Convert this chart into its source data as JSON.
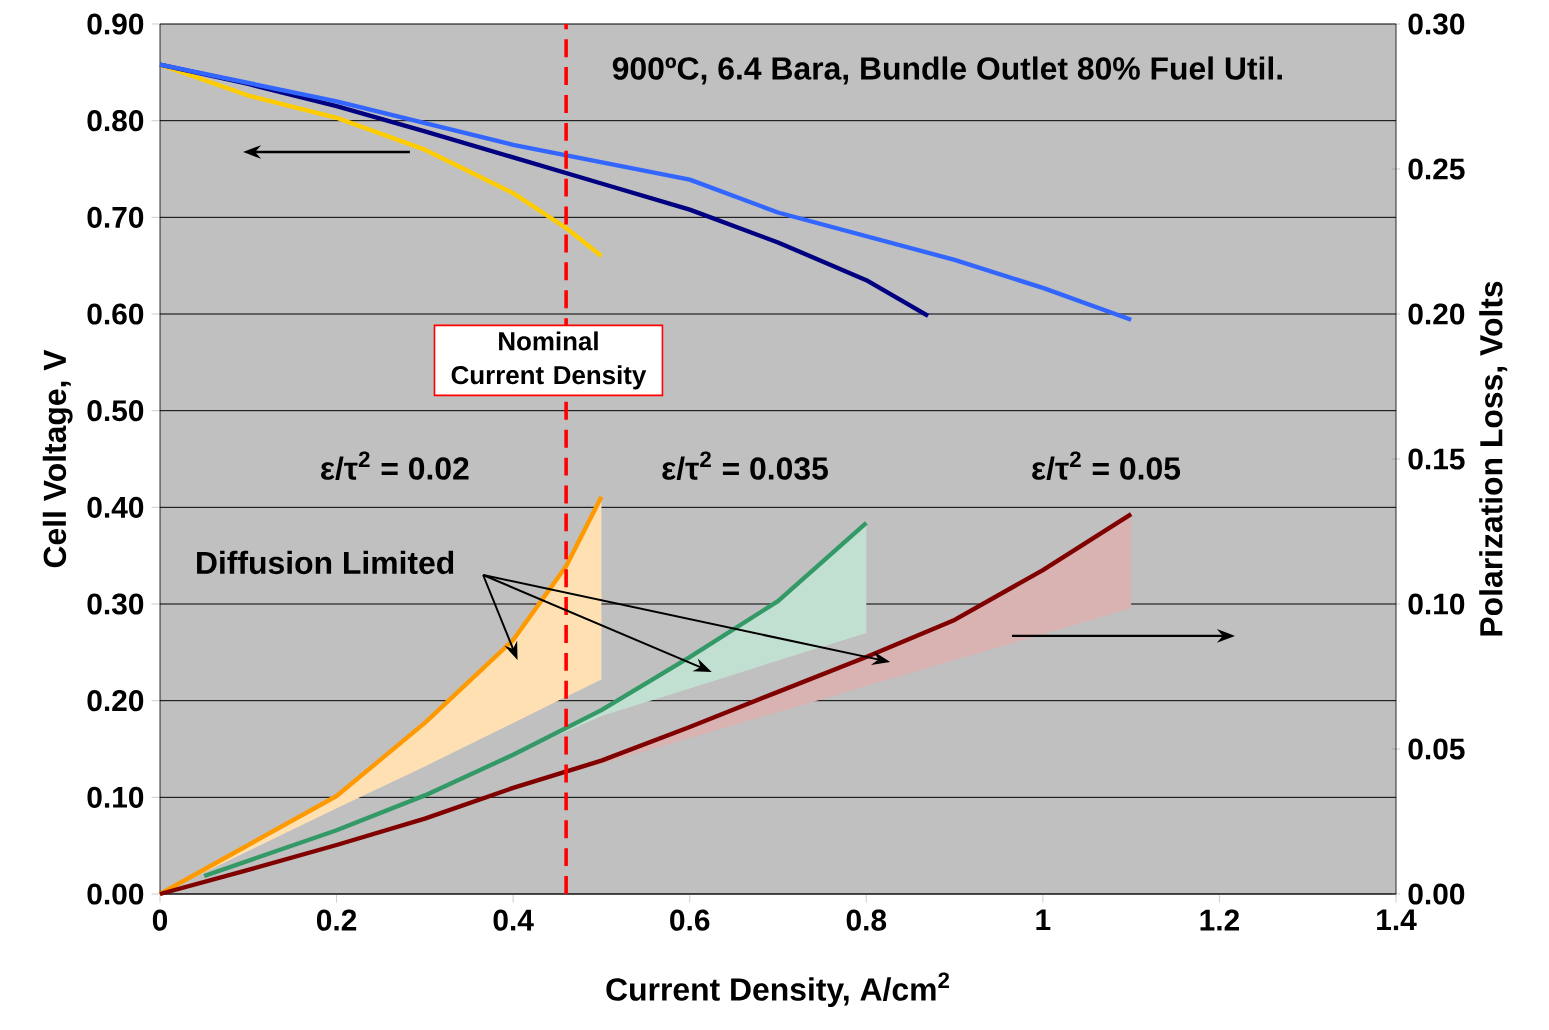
{
  "chart_data": {
    "type": "line",
    "xlabel": "Current Density, A/cm$^{2}$",
    "ylabel": "Cell Voltage, V",
    "y2label": "Polarization Loss, Volts",
    "annotations": [
      "900ºC, 6.4 Bara, Bundle Outlet 80% Fuel Util.",
      "ε/τ$^{2}$ = 0.02",
      "ε/τ$^{2}$ = 0.035",
      "ε/τ$^{2}$ = 0.05",
      "Diffusion Limited"
    ],
    "series": [
      {
        "color": "#FFCC00",
        "x": [
          0,
          0.1,
          0.2,
          0.3,
          0.4,
          0.46,
          0.5
        ],
        "values": [
          0.858,
          0.826,
          0.803,
          0.77,
          0.725,
          0.689,
          0.66
        ]
      },
      {
        "color": "#000080",
        "x": [
          0,
          0.1,
          0.2,
          0.3,
          0.4,
          0.5,
          0.6,
          0.7,
          0.8,
          0.87
        ],
        "values": [
          0.858,
          0.838,
          0.815,
          0.789,
          0.762,
          0.735,
          0.708,
          0.674,
          0.635,
          0.598
        ]
      },
      {
        "color": "#3366FF",
        "x": [
          0,
          0.2,
          0.4,
          0.6,
          0.7,
          0.9,
          1.0,
          1.1
        ],
        "values": [
          0.858,
          0.82,
          0.775,
          0.739,
          0.705,
          0.656,
          0.627,
          0.594
        ]
      },
      {
        "color": "#FF9900",
        "axis": "y2",
        "x": [
          0,
          0.1,
          0.2,
          0.3,
          0.4,
          0.46,
          0.5
        ],
        "values": [
          0,
          0.0169,
          0.0338,
          0.059,
          0.0876,
          0.113,
          0.137
        ],
        "lower": [
          0,
          0.0148,
          0.0296,
          0.044,
          0.059,
          0.068,
          0.074
        ],
        "upper": [
          0,
          0.0169,
          0.0338,
          0.059,
          0.0876,
          0.113,
          0.137
        ]
      },
      {
        "color": "#339966",
        "axis": "y2",
        "x": [
          0.05,
          0.2,
          0.3,
          0.4,
          0.5,
          0.6,
          0.7,
          0.8
        ],
        "values": [
          0.0062,
          0.022,
          0.034,
          0.048,
          0.0634,
          0.0817,
          0.101,
          0.128
        ],
        "lower": [
          0.0062,
          0.022,
          0.034,
          0.048,
          0.0614,
          0.0709,
          0.0805,
          0.09
        ],
        "upper": [
          0.0062,
          0.022,
          0.034,
          0.048,
          0.0634,
          0.0817,
          0.101,
          0.128
        ]
      },
      {
        "color": "#800000",
        "axis": "y2",
        "x": [
          0,
          0.1,
          0.2,
          0.3,
          0.4,
          0.5,
          0.6,
          0.7,
          0.8,
          0.9,
          1.0,
          1.1
        ],
        "values": [
          0,
          0.0083,
          0.0169,
          0.026,
          0.0366,
          0.046,
          0.0576,
          0.0697,
          0.0817,
          0.0945,
          0.1117,
          0.131
        ],
        "lower": [
          0,
          0.0083,
          0.0169,
          0.026,
          0.0366,
          0.0448,
          0.0538,
          0.0627,
          0.0717,
          0.0807,
          0.0896,
          0.0986
        ],
        "upper": [
          0,
          0.0083,
          0.0169,
          0.026,
          0.0366,
          0.046,
          0.0576,
          0.0697,
          0.0817,
          0.0945,
          0.1117,
          0.131
        ]
      }
    ],
    "xlim": [
      0,
      1.4
    ],
    "xticks": [
      0,
      0.2,
      0.4,
      0.6,
      0.8,
      1,
      1.2,
      1.4
    ],
    "ylim": [
      0,
      0.9
    ],
    "yticks": [
      {
        "value": 0,
        "label": "0.00"
      },
      {
        "value": 0.1,
        "label": "0.10"
      },
      {
        "value": 0.2,
        "label": "0.20"
      },
      {
        "value": 0.3,
        "label": "0.30"
      },
      {
        "value": 0.4,
        "label": "0.40"
      },
      {
        "value": 0.5,
        "label": "0.50"
      },
      {
        "value": 0.6,
        "label": "0.60"
      },
      {
        "value": 0.7,
        "label": "0.70"
      },
      {
        "value": 0.8,
        "label": "0.80"
      },
      {
        "value": 0.9,
        "label": "0.90"
      }
    ],
    "y2lim": [
      0,
      0.3
    ],
    "y2ticks": [
      {
        "value": 0,
        "label": "0.00"
      },
      {
        "value": 0.05,
        "label": "0.05"
      },
      {
        "value": 0.1,
        "label": "0.10"
      },
      {
        "value": 0.15,
        "label": "0.15"
      },
      {
        "value": 0.2,
        "label": "0.20"
      },
      {
        "value": 0.25,
        "label": "0.25"
      },
      {
        "value": 0.3,
        "label": "0.30"
      }
    ],
    "ref_lines": [
      {
        "axis": "x",
        "value": 0.46,
        "label": "Nominal Current Density",
        "color": "#FF0000",
        "line_style": "dashed"
      }
    ],
    "grid": "y"
  }
}
